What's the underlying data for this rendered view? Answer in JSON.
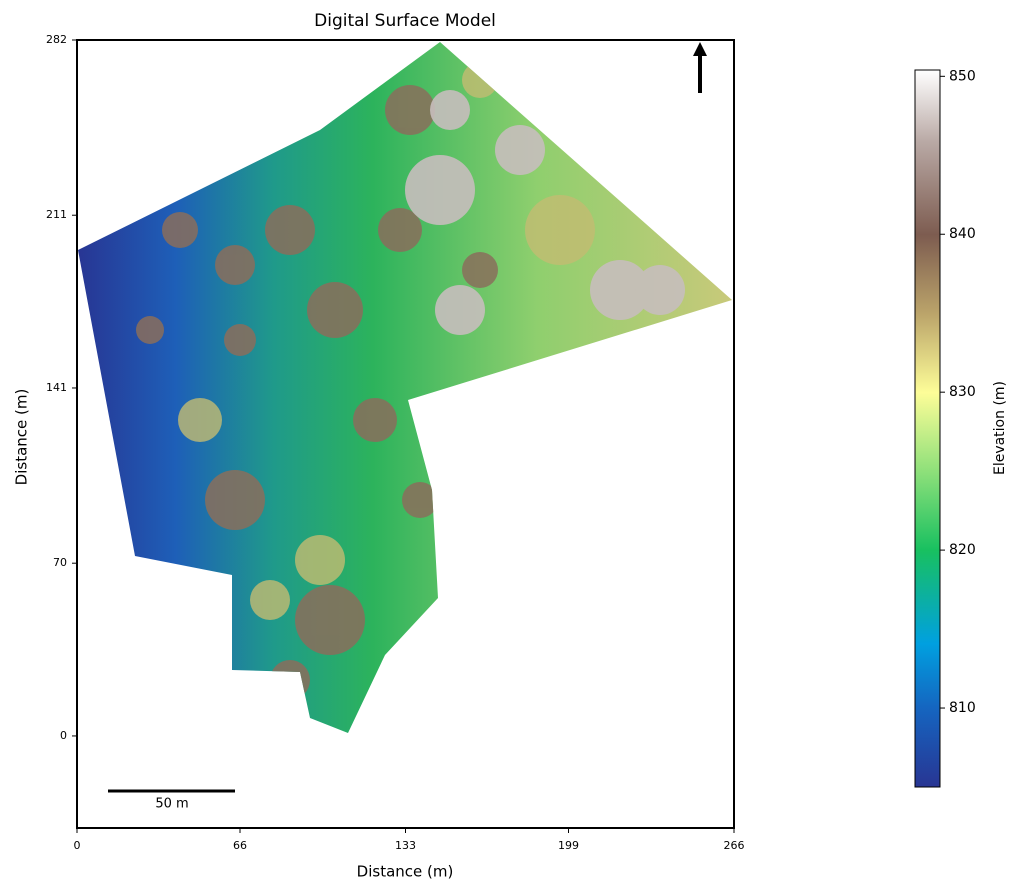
{
  "chart_data": {
    "type": "heatmap",
    "title": "Digital Surface Model",
    "x_label": "Distance (m)",
    "y_label": "Distance (m)",
    "xlim": [
      0,
      266
    ],
    "xticks": [
      0,
      66,
      133,
      199,
      266
    ],
    "ylim": [
      -37.3,
      282
    ],
    "yticks": [
      0,
      70,
      141,
      211,
      282
    ],
    "scale_bar_label": "50 m",
    "colorbar": {
      "label": "Elevation (m)",
      "lim": [
        805,
        850.4
      ],
      "ticks": [
        810,
        820,
        830,
        840,
        850
      ]
    }
  }
}
